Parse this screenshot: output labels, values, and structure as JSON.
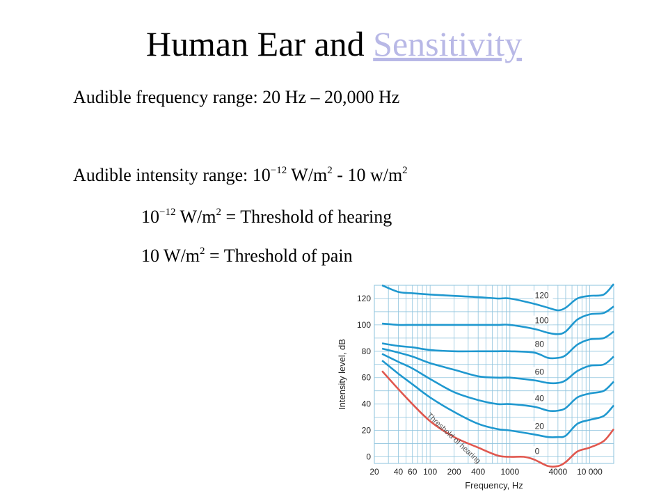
{
  "slide": {
    "title_main": "Human Ear and ",
    "title_link": "Sensitivity",
    "line1": "Audible frequency range: 20 Hz – 20,000 Hz",
    "line2": {
      "prefix": "Audible intensity range: 10",
      "exp1": "−12",
      "mid": " W/m",
      "exp2": "2",
      "suffix": " - 10 w/m",
      "exp3": "2"
    },
    "line3": {
      "prefix": "10",
      "exp1": "−12",
      "mid": " W/m",
      "exp2": "2",
      "suffix": " = Threshold of hearing"
    },
    "line4": {
      "prefix": "10 W/m",
      "exp": "2",
      "suffix": " = Threshold of pain"
    }
  },
  "colors": {
    "contour": "#1f98cf",
    "threshold": "#e0574e",
    "grid": "#8ec3dd",
    "title_link": "#b8b8e6"
  },
  "chart_data": {
    "type": "line",
    "xlabel": "Frequency, Hz",
    "ylabel": "Intensity level, dB",
    "x_scale": "log",
    "xlim": [
      20,
      20000
    ],
    "ylim": [
      -5,
      130
    ],
    "x_ticks": [
      {
        "value": 20,
        "label": "20"
      },
      {
        "value": 40,
        "label": "40"
      },
      {
        "value": 60,
        "label": "60"
      },
      {
        "value": 100,
        "label": "100"
      },
      {
        "value": 200,
        "label": "200"
      },
      {
        "value": 400,
        "label": "400"
      },
      {
        "value": 1000,
        "label": "1000"
      },
      {
        "value": 4000,
        "label": "4000"
      },
      {
        "value": 10000,
        "label": "10 000"
      }
    ],
    "y_ticks": [
      0,
      20,
      40,
      60,
      80,
      100,
      120
    ],
    "grid": true,
    "annotations": [
      {
        "text": "Threshold of hearing"
      }
    ],
    "series": [
      {
        "name": "0",
        "color": "#e0574e",
        "points": [
          [
            25,
            65
          ],
          [
            50,
            45
          ],
          [
            100,
            27
          ],
          [
            200,
            15
          ],
          [
            400,
            7
          ],
          [
            700,
            1
          ],
          [
            1000,
            0
          ],
          [
            1500,
            0
          ],
          [
            2000,
            -2
          ],
          [
            3000,
            -7
          ],
          [
            4000,
            -7
          ],
          [
            5000,
            -4
          ],
          [
            7000,
            4
          ],
          [
            10000,
            7
          ],
          [
            15000,
            12
          ],
          [
            20000,
            21
          ]
        ]
      },
      {
        "name": "20",
        "points": [
          [
            25,
            73
          ],
          [
            40,
            63
          ],
          [
            60,
            55
          ],
          [
            100,
            45
          ],
          [
            200,
            34
          ],
          [
            400,
            25
          ],
          [
            700,
            21
          ],
          [
            1000,
            20
          ],
          [
            2000,
            17
          ],
          [
            3000,
            15
          ],
          [
            4000,
            15
          ],
          [
            5000,
            16
          ],
          [
            7000,
            25
          ],
          [
            10000,
            28
          ],
          [
            15000,
            31
          ],
          [
            20000,
            39
          ]
        ]
      },
      {
        "name": "40",
        "points": [
          [
            25,
            78
          ],
          [
            40,
            72
          ],
          [
            60,
            67
          ],
          [
            100,
            59
          ],
          [
            200,
            49
          ],
          [
            400,
            43
          ],
          [
            700,
            40
          ],
          [
            1000,
            40
          ],
          [
            2000,
            38
          ],
          [
            3000,
            35
          ],
          [
            4000,
            35
          ],
          [
            5000,
            37
          ],
          [
            7000,
            45
          ],
          [
            10000,
            48
          ],
          [
            15000,
            50
          ],
          [
            20000,
            57
          ]
        ]
      },
      {
        "name": "60",
        "points": [
          [
            25,
            82
          ],
          [
            40,
            79
          ],
          [
            60,
            76
          ],
          [
            100,
            71
          ],
          [
            200,
            66
          ],
          [
            400,
            61
          ],
          [
            700,
            60
          ],
          [
            1000,
            60
          ],
          [
            2000,
            58
          ],
          [
            3000,
            56
          ],
          [
            4000,
            56
          ],
          [
            5000,
            58
          ],
          [
            7000,
            65
          ],
          [
            10000,
            69
          ],
          [
            15000,
            70
          ],
          [
            20000,
            76
          ]
        ]
      },
      {
        "name": "80",
        "points": [
          [
            25,
            86
          ],
          [
            40,
            84
          ],
          [
            60,
            83
          ],
          [
            100,
            81
          ],
          [
            200,
            80
          ],
          [
            400,
            80
          ],
          [
            700,
            80
          ],
          [
            1000,
            80
          ],
          [
            2000,
            79
          ],
          [
            3000,
            75
          ],
          [
            4000,
            75
          ],
          [
            5000,
            77
          ],
          [
            7000,
            85
          ],
          [
            10000,
            89
          ],
          [
            15000,
            90
          ],
          [
            20000,
            95
          ]
        ]
      },
      {
        "name": "100",
        "points": [
          [
            25,
            101
          ],
          [
            40,
            100
          ],
          [
            60,
            100
          ],
          [
            100,
            100
          ],
          [
            200,
            100
          ],
          [
            400,
            100
          ],
          [
            700,
            100
          ],
          [
            1000,
            100
          ],
          [
            2000,
            97
          ],
          [
            3000,
            94
          ],
          [
            4000,
            93
          ],
          [
            5000,
            95
          ],
          [
            7000,
            104
          ],
          [
            10000,
            108
          ],
          [
            15000,
            109
          ],
          [
            20000,
            114
          ]
        ]
      },
      {
        "name": "120",
        "points": [
          [
            25,
            130
          ],
          [
            40,
            125
          ],
          [
            60,
            124
          ],
          [
            100,
            123
          ],
          [
            200,
            122
          ],
          [
            400,
            121
          ],
          [
            700,
            120
          ],
          [
            1000,
            120
          ],
          [
            2000,
            116
          ],
          [
            3000,
            113
          ],
          [
            4000,
            111
          ],
          [
            5000,
            113
          ],
          [
            7000,
            120
          ],
          [
            10000,
            122
          ],
          [
            15000,
            123
          ],
          [
            20000,
            131
          ]
        ]
      }
    ]
  }
}
